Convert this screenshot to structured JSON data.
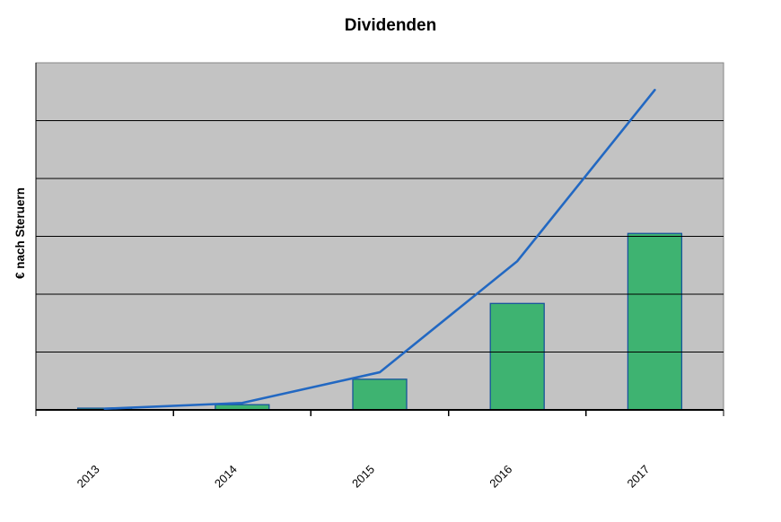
{
  "chart_data": {
    "type": "bar",
    "title": "Dividenden",
    "ylabel": "€ nach Steruern",
    "xlabel": "",
    "categories": [
      "2013",
      "2014",
      "2015",
      "2016",
      "2017"
    ],
    "series": [
      {
        "id": "bars",
        "type": "bar",
        "values": [
          0.03,
          0.09,
          0.53,
          1.84,
          3.05
        ]
      },
      {
        "id": "line",
        "type": "line",
        "values": [
          0.02,
          0.12,
          0.65,
          2.57,
          5.53
        ]
      }
    ],
    "ylim": [
      0,
      6
    ],
    "gridline_step": 1,
    "grid": "horizontal",
    "y_tick_labels_visible": false,
    "legend": "none",
    "x_label_rotation_deg": -45,
    "note": "y-axis shows no numeric tick labels; values estimated in gridline units"
  },
  "colors": {
    "background": "#FFFFFF",
    "plot_bg": "#C3C3C3",
    "plot_border": "#858585",
    "gridline": "#000000",
    "axis": "#000000",
    "tick": "#000000",
    "bar_fill": "#3EB371",
    "bar_border": "#17549B",
    "line": "#2268C2",
    "text": "#000000"
  }
}
